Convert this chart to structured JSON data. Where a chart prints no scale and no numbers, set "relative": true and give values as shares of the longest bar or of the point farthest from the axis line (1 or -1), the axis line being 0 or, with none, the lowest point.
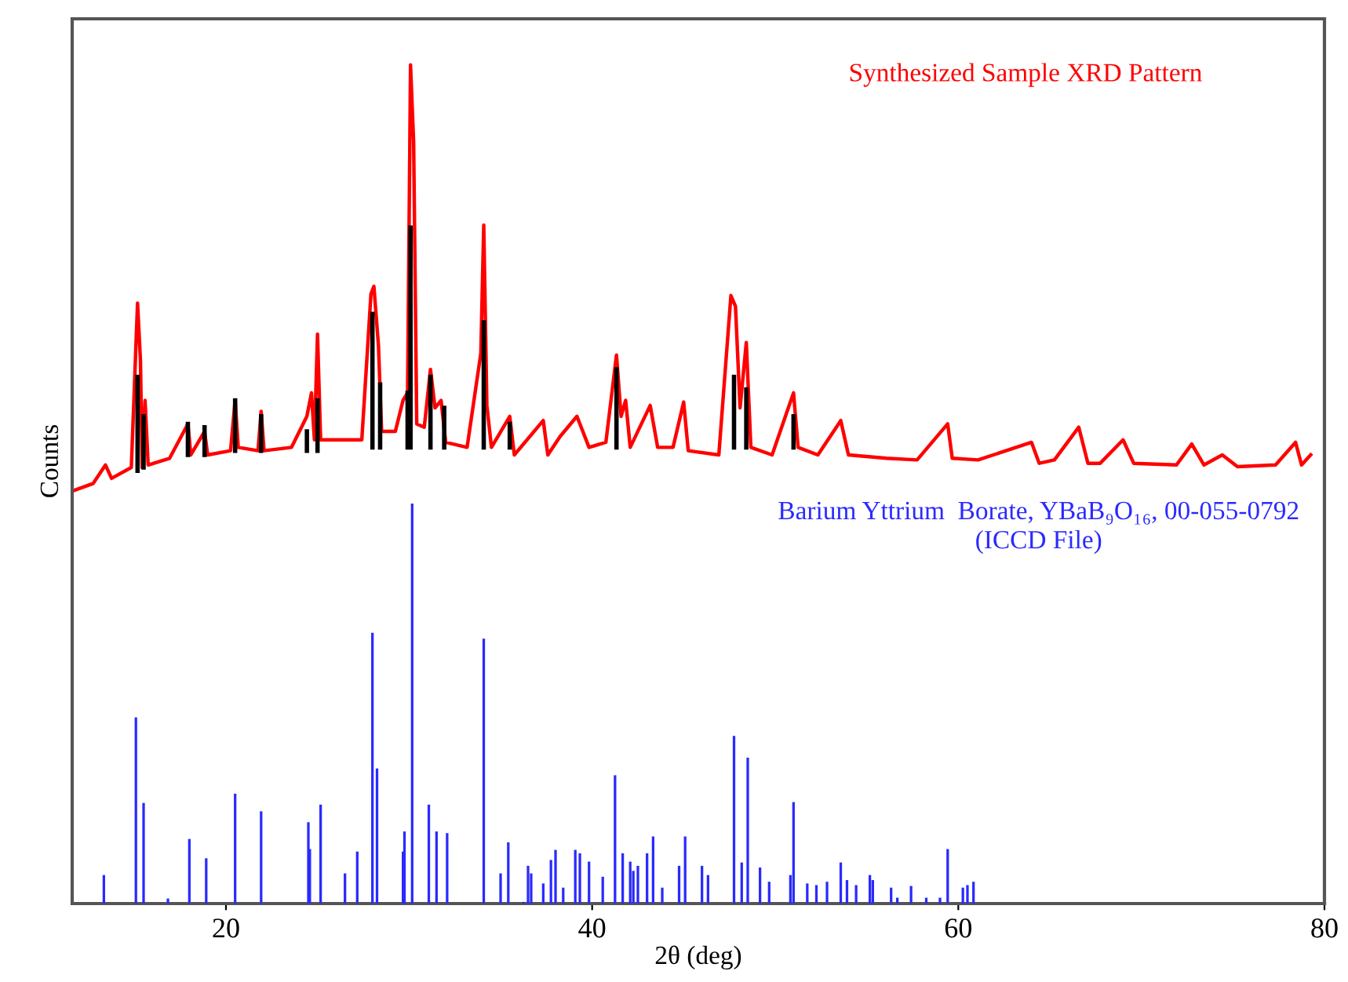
{
  "chart_data": {
    "type": "line",
    "relative": true,
    "xlabel": "2θ (deg)",
    "ylabel": "Counts",
    "xlim": [
      11.6,
      80
    ],
    "xticks": [
      20,
      40,
      60,
      80
    ],
    "grid": false,
    "legend": false,
    "marker": "none",
    "line_style": "solid",
    "series": [
      {
        "name": "Synthesized Sample XRD Pattern",
        "color": "#ff0000",
        "x": [
          11.75,
          12.75,
          13.42,
          13.75,
          14.83,
          15.17,
          15.33,
          15.42,
          15.58,
          15.75,
          16.92,
          17.92,
          18.08,
          18.83,
          19.0,
          20.25,
          20.5,
          20.67,
          21.75,
          21.92,
          22.08,
          23.58,
          24.42,
          24.67,
          24.83,
          25.0,
          25.17,
          26.5,
          27.42,
          27.92,
          28.08,
          28.33,
          28.5,
          29.25,
          29.67,
          29.92,
          30.08,
          30.25,
          30.42,
          30.83,
          31.17,
          31.42,
          31.75,
          32.0,
          33.17,
          33.92,
          34.08,
          34.25,
          34.5,
          35.5,
          35.75,
          37.33,
          37.58,
          38.25,
          39.17,
          39.83,
          40.75,
          41.33,
          41.58,
          41.83,
          42.08,
          43.17,
          43.58,
          44.42,
          45.0,
          45.25,
          46.92,
          47.58,
          47.83,
          48.08,
          48.42,
          48.67,
          49.83,
          51.0,
          51.25,
          52.33,
          53.58,
          54.0,
          56.08,
          57.75,
          59.42,
          59.67,
          61.08,
          64.0,
          64.42,
          65.25,
          66.58,
          67.08,
          67.75,
          69.0,
          69.58,
          71.92,
          72.75,
          73.42,
          74.42,
          75.25,
          77.33,
          78.42,
          78.75,
          79.25
        ],
        "values": [
          0.493,
          0.501,
          0.523,
          0.507,
          0.52,
          0.716,
          0.647,
          0.52,
          0.6,
          0.523,
          0.531,
          0.572,
          0.535,
          0.563,
          0.535,
          0.54,
          0.6,
          0.544,
          0.54,
          0.587,
          0.54,
          0.544,
          0.581,
          0.609,
          0.553,
          0.679,
          0.553,
          0.553,
          0.553,
          0.727,
          0.736,
          0.665,
          0.563,
          0.563,
          0.6,
          0.609,
          1.0,
          0.908,
          0.572,
          0.568,
          0.637,
          0.591,
          0.6,
          0.55,
          0.544,
          0.656,
          0.809,
          0.594,
          0.544,
          0.581,
          0.535,
          0.576,
          0.535,
          0.557,
          0.581,
          0.544,
          0.55,
          0.654,
          0.581,
          0.6,
          0.544,
          0.594,
          0.544,
          0.544,
          0.598,
          0.54,
          0.535,
          0.725,
          0.712,
          0.591,
          0.669,
          0.544,
          0.535,
          0.609,
          0.544,
          0.535,
          0.576,
          0.535,
          0.531,
          0.529,
          0.572,
          0.531,
          0.529,
          0.55,
          0.525,
          0.529,
          0.568,
          0.525,
          0.525,
          0.553,
          0.525,
          0.523,
          0.548,
          0.523,
          0.535,
          0.521,
          0.523,
          0.55,
          0.523,
          0.535
        ]
      },
      {
        "color": "#000000",
        "x": [
          15.17,
          15.17,
          null,
          15.5,
          15.5,
          null,
          17.92,
          17.92,
          null,
          18.83,
          18.83,
          null,
          20.5,
          20.5,
          null,
          21.92,
          21.92,
          null,
          24.42,
          24.42,
          null,
          25.0,
          25.0,
          null,
          28.0,
          28.0,
          null,
          28.42,
          28.42,
          null,
          29.92,
          29.92,
          null,
          30.08,
          30.08,
          null,
          31.17,
          31.17,
          null,
          31.92,
          31.92,
          null,
          34.08,
          34.08,
          null,
          35.5,
          35.5,
          null,
          41.33,
          41.33,
          null,
          47.75,
          47.75,
          null,
          48.42,
          48.42,
          null,
          51.0,
          51.0
        ],
        "values": [
          0.516,
          0.628,
          null,
          0.52,
          0.581,
          null,
          0.535,
          0.572,
          null,
          0.535,
          0.568,
          null,
          0.54,
          0.6,
          null,
          0.54,
          0.581,
          null,
          0.54,
          0.563,
          null,
          0.54,
          0.6,
          null,
          0.544,
          0.703,
          null,
          0.544,
          0.619,
          null,
          0.544,
          0.609,
          null,
          0.544,
          0.806,
          null,
          0.544,
          0.628,
          null,
          0.544,
          0.591,
          null,
          0.544,
          0.693,
          null,
          0.544,
          0.572,
          null,
          0.544,
          0.637,
          null,
          0.544,
          0.628,
          null,
          0.544,
          0.613,
          null,
          0.544,
          0.581
        ]
      },
      {
        "name": "Barium Yttrium  Borate, YBaB₉O₁₆, 00-055-0792\n(ICCD File)",
        "type": "bar",
        "color": "#2a2aff",
        "x": [
          13.33,
          15.08,
          15.5,
          16.83,
          18.0,
          18.92,
          20.5,
          21.92,
          24.5,
          24.58,
          25.17,
          26.5,
          27.17,
          28.0,
          28.25,
          29.67,
          29.75,
          30.17,
          31.08,
          31.5,
          32.08,
          34.08,
          35.0,
          35.42,
          36.25,
          36.5,
          36.67,
          37.33,
          37.75,
          38.0,
          38.42,
          39.08,
          39.33,
          39.83,
          40.58,
          41.25,
          41.67,
          42.08,
          42.25,
          42.5,
          43.0,
          43.33,
          43.83,
          44.75,
          45.08,
          46.0,
          46.33,
          47.75,
          48.17,
          48.5,
          49.17,
          49.67,
          50.83,
          51.0,
          51.75,
          52.25,
          52.83,
          53.58,
          53.92,
          54.42,
          55.17,
          55.33,
          56.33,
          56.67,
          57.42,
          58.25,
          59.0,
          59.42,
          60.25,
          60.5,
          60.83
        ],
        "values": [
          0.034,
          0.222,
          0.12,
          0.006,
          0.077,
          0.054,
          0.131,
          0.11,
          0.097,
          0.065,
          0.118,
          0.036,
          0.062,
          0.323,
          0.161,
          0.062,
          0.086,
          0.477,
          0.118,
          0.086,
          0.084,
          0.316,
          0.036,
          0.073,
          0.002,
          0.045,
          0.036,
          0.024,
          0.052,
          0.064,
          0.019,
          0.064,
          0.06,
          0.05,
          0.032,
          0.153,
          0.06,
          0.05,
          0.039,
          0.045,
          0.06,
          0.08,
          0.019,
          0.045,
          0.08,
          0.045,
          0.034,
          0.2,
          0.049,
          0.174,
          0.043,
          0.026,
          0.034,
          0.121,
          0.024,
          0.022,
          0.026,
          0.049,
          0.028,
          0.022,
          0.034,
          0.028,
          0.019,
          0.007,
          0.021,
          0.007,
          0.007,
          0.065,
          0.019,
          0.022,
          0.026
        ]
      }
    ]
  }
}
